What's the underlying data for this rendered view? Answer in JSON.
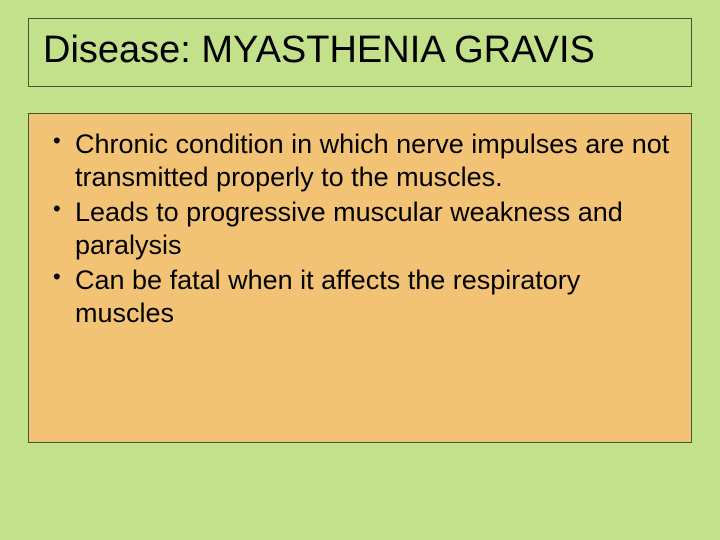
{
  "slide": {
    "background_color": "#c3e08a",
    "title_box": {
      "border_color": "#3b5f2a",
      "background_color": "#c3e08a",
      "text": "Disease: MYASTHENIA GRAVIS",
      "font_size": 38,
      "text_color": "#000000"
    },
    "body_box": {
      "border_color": "#3b5f2a",
      "background_color": "#f2c374",
      "bullets": [
        "Chronic condition in which nerve impulses are not transmitted properly to the muscles.",
        "Leads to progressive muscular weakness and paralysis",
        "Can be fatal when it affects the respiratory muscles"
      ],
      "font_size": 27,
      "text_color": "#000000"
    }
  }
}
